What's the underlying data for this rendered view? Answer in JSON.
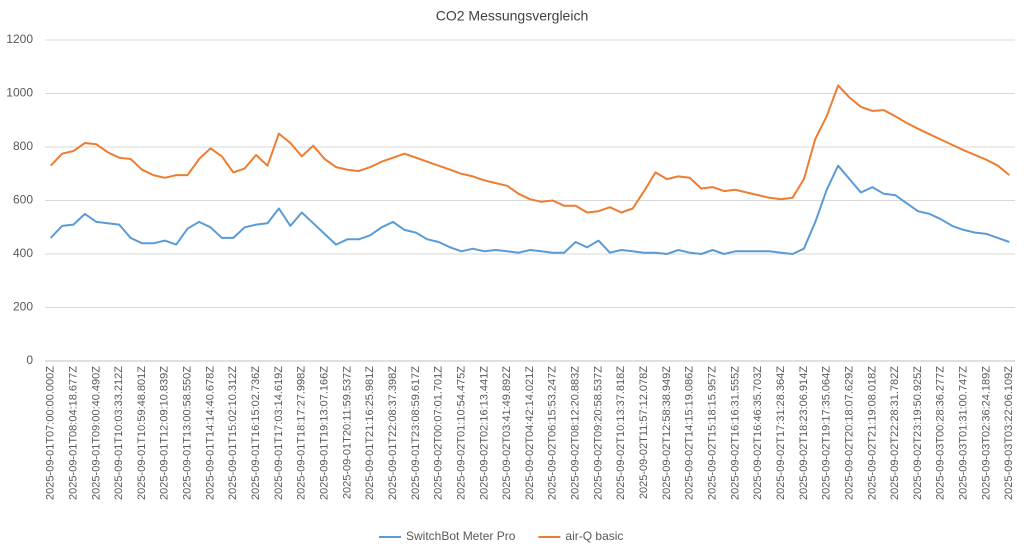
{
  "chart_data": {
    "type": "line",
    "title": "CO2 Messungsvergleich",
    "categories": [
      "2025-09-01T07:00:00.000Z",
      null,
      "2025-09-01T08:04:18.677Z",
      null,
      "2025-09-01T09:00:40.490Z",
      null,
      "2025-09-01T10:03:33.212Z",
      null,
      "2025-09-01T10:59:48.801Z",
      null,
      "2025-09-01T12:09:10.839Z",
      null,
      "2025-09-01T13:00:58.550Z",
      null,
      "2025-09-01T14:14:40.678Z",
      null,
      "2025-09-01T15:02:10.312Z",
      null,
      "2025-09-01T16:15:02.736Z",
      null,
      "2025-09-01T17:03:14.619Z",
      null,
      "2025-09-01T18:17:27.998Z",
      null,
      "2025-09-01T19:13:07.166Z",
      null,
      "2025-09-01T20:11:59.537Z",
      null,
      "2025-09-01T21:16:25.981Z",
      null,
      "2025-09-01T22:08:37.398Z",
      null,
      "2025-09-01T23:08:59.617Z",
      null,
      "2025-09-02T00:07:01.701Z",
      null,
      "2025-09-02T01:10:54.475Z",
      null,
      "2025-09-02T02:16:13.441Z",
      null,
      "2025-09-02T03:41:49.892Z",
      null,
      "2025-09-02T04:42:14.021Z",
      null,
      "2025-09-02T06:15:53.247Z",
      null,
      "2025-09-02T08:12:20.883Z",
      null,
      "2025-09-02T09:20:58.537Z",
      null,
      "2025-09-02T10:13:37.818Z",
      null,
      "2025-09-02T11:57:12.078Z",
      null,
      "2025-09-02T12:58:38.949Z",
      null,
      "2025-09-02T14:15:19.086Z",
      null,
      "2025-09-02T15:18:15.957Z",
      null,
      "2025-09-02T16:16:31.555Z",
      null,
      "2025-09-02T16:46:35.703Z",
      null,
      "2025-09-02T17:31:28.364Z",
      null,
      "2025-09-02T18:23:06.914Z",
      null,
      "2025-09-02T19:17:35.064Z",
      null,
      "2025-09-02T20:18:07.629Z",
      null,
      "2025-09-02T21:19:08.018Z",
      null,
      "2025-09-02T22:28:31.782Z",
      null,
      "2025-09-02T23:19:50.925Z",
      null,
      "2025-09-03T00:28:36.277Z",
      null,
      "2025-09-03T01:31:00.747Z",
      null,
      "2025-09-03T02:36:24.189Z",
      null,
      "2025-09-03T03:22:06.109Z"
    ],
    "series": [
      {
        "name": "SwitchBot Meter Pro",
        "color": "#5b9bd5",
        "values": [
          460,
          505,
          510,
          550,
          520,
          515,
          510,
          460,
          440,
          440,
          450,
          435,
          495,
          520,
          500,
          460,
          460,
          500,
          510,
          515,
          570,
          505,
          555,
          515,
          475,
          435,
          455,
          455,
          470,
          500,
          520,
          490,
          480,
          455,
          445,
          425,
          410,
          420,
          410,
          415,
          410,
          405,
          415,
          410,
          405,
          405,
          445,
          425,
          450,
          405,
          415,
          410,
          405,
          405,
          400,
          415,
          405,
          400,
          415,
          400,
          410,
          410,
          410,
          410,
          405,
          400,
          420,
          520,
          640,
          730,
          680,
          630,
          650,
          625,
          620,
          590,
          560,
          550,
          530,
          505,
          490,
          480,
          475,
          460,
          445
        ]
      },
      {
        "name": "air-Q basic",
        "color": "#ed7d31",
        "values": [
          730,
          775,
          785,
          815,
          810,
          780,
          760,
          755,
          715,
          695,
          685,
          695,
          695,
          755,
          795,
          765,
          705,
          720,
          770,
          730,
          850,
          815,
          765,
          805,
          755,
          725,
          715,
          710,
          725,
          745,
          760,
          775,
          760,
          745,
          730,
          715,
          700,
          690,
          675,
          665,
          655,
          625,
          605,
          595,
          600,
          580,
          580,
          555,
          560,
          575,
          555,
          570,
          635,
          705,
          680,
          690,
          685,
          645,
          650,
          635,
          640,
          630,
          620,
          610,
          605,
          610,
          680,
          830,
          915,
          1030,
          985,
          950,
          935,
          938,
          915,
          890,
          868,
          848,
          828,
          808,
          788,
          770,
          752,
          730,
          695
        ]
      }
    ],
    "ylim": [
      0,
      1200
    ],
    "yticks": [
      0,
      200,
      400,
      600,
      800,
      1000,
      1200
    ],
    "grid": true,
    "legend": "bottom"
  }
}
